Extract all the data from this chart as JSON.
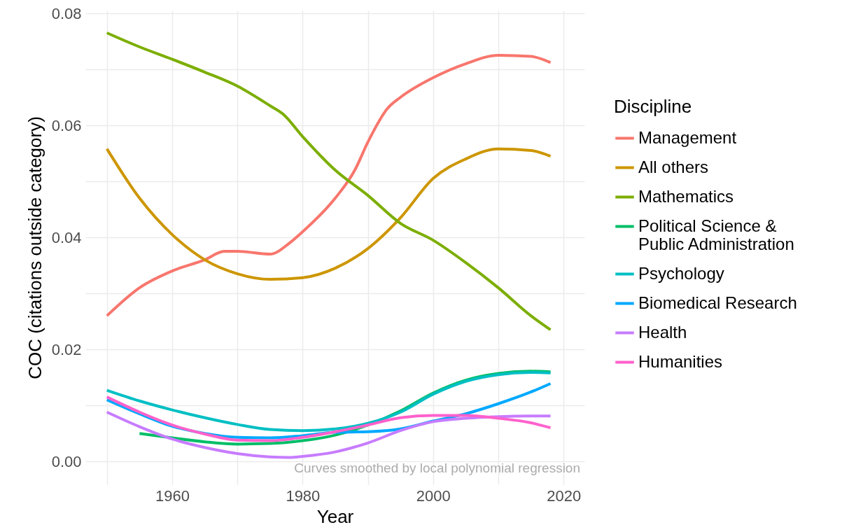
{
  "chart_data": {
    "type": "line",
    "xlabel": "Year",
    "ylabel": "COC (citations outside category)",
    "legend_title": "Discipline",
    "legend": "right",
    "grid": true,
    "xlim": [
      1946.7,
      2023.2
    ],
    "xticks": [
      {
        "value": 1950,
        "label": null
      },
      1960,
      {
        "value": 1970,
        "label": null
      },
      1980,
      {
        "value": 1990,
        "label": null
      },
      2000,
      {
        "value": 2010,
        "label": null
      },
      2020
    ],
    "ylim": [
      -0.0041,
      0.0805
    ],
    "yticks": [
      {
        "value": 0,
        "label": "0.00"
      },
      {
        "value": 0.01,
        "label": null
      },
      {
        "value": 0.02,
        "label": "0.02"
      },
      {
        "value": 0.03,
        "label": null
      },
      {
        "value": 0.04,
        "label": "0.04"
      },
      {
        "value": 0.05,
        "label": null
      },
      {
        "value": 0.06,
        "label": "0.06"
      },
      {
        "value": 0.07,
        "label": null
      },
      {
        "value": 0.08,
        "label": "0.08"
      }
    ],
    "annotations": [
      "Curves smoothed by local polynomial regression"
    ],
    "series": [
      {
        "name": "Management",
        "color": "#f8766d",
        "x": [
          1950,
          1955,
          1960,
          1965,
          1968,
          1970,
          1975,
          1978,
          1980,
          1985,
          1988,
          1990,
          1993,
          1995,
          2000,
          2005,
          2010,
          2015,
          2018
        ],
        "values": [
          0.026,
          0.031,
          0.034,
          0.036,
          0.0375,
          0.0375,
          0.037,
          0.039,
          0.041,
          0.047,
          0.052,
          0.057,
          0.063,
          0.065,
          0.0685,
          0.071,
          0.0725,
          0.0723,
          0.0712
        ]
      },
      {
        "name": "All others",
        "color": "#cd9600",
        "x": [
          1950,
          1955,
          1960,
          1965,
          1970,
          1975,
          1980,
          1985,
          1990,
          1995,
          2000,
          2005,
          2010,
          2015,
          2018
        ],
        "values": [
          0.0558,
          0.047,
          0.0405,
          0.036,
          0.0335,
          0.0325,
          0.0328,
          0.0345,
          0.038,
          0.0435,
          0.0505,
          0.054,
          0.0558,
          0.0555,
          0.0545
        ]
      },
      {
        "name": "Mathematics",
        "color": "#7cae00",
        "x": [
          1950,
          1955,
          1960,
          1965,
          1970,
          1975,
          1977,
          1980,
          1985,
          1990,
          1995,
          2000,
          2005,
          2010,
          2015,
          2018
        ],
        "values": [
          0.0765,
          0.074,
          0.0718,
          0.0695,
          0.067,
          0.0635,
          0.062,
          0.058,
          0.052,
          0.0475,
          0.0425,
          0.0395,
          0.0355,
          0.031,
          0.026,
          0.0235
        ]
      },
      {
        "name": "Political Science & Public Administration",
        "color": "#00be67",
        "x": [
          1955,
          1960,
          1965,
          1970,
          1975,
          1980,
          1985,
          1990,
          1995,
          2000,
          2005,
          2010,
          2015,
          2018
        ],
        "values": [
          0.005,
          0.0042,
          0.0035,
          0.0031,
          0.0032,
          0.0037,
          0.0047,
          0.0065,
          0.009,
          0.0122,
          0.0145,
          0.0157,
          0.0161,
          0.016
        ]
      },
      {
        "name": "Psychology",
        "color": "#00bfc4",
        "x": [
          1950,
          1955,
          1960,
          1965,
          1970,
          1975,
          1980,
          1985,
          1990,
          1995,
          2000,
          2005,
          2010,
          2015,
          2018
        ],
        "values": [
          0.0127,
          0.0108,
          0.0092,
          0.0078,
          0.0066,
          0.0057,
          0.0055,
          0.0058,
          0.0068,
          0.0088,
          0.012,
          0.0143,
          0.0155,
          0.0159,
          0.0158
        ]
      },
      {
        "name": "Biomedical Research",
        "color": "#00a9ff",
        "x": [
          1950,
          1955,
          1960,
          1965,
          1970,
          1975,
          1980,
          1985,
          1990,
          1995,
          2000,
          2005,
          2010,
          2015,
          2018
        ],
        "values": [
          0.011,
          0.0085,
          0.0063,
          0.005,
          0.0043,
          0.0042,
          0.0046,
          0.0052,
          0.0053,
          0.0058,
          0.0072,
          0.0085,
          0.0103,
          0.0124,
          0.0139
        ]
      },
      {
        "name": "Health",
        "color": "#c77cff",
        "x": [
          1950,
          1955,
          1960,
          1965,
          1970,
          1975,
          1978,
          1980,
          1985,
          1990,
          1995,
          2000,
          2005,
          2010,
          2015,
          2018
        ],
        "values": [
          0.0088,
          0.0062,
          0.004,
          0.0025,
          0.0014,
          0.0008,
          0.0007,
          0.0009,
          0.0017,
          0.0033,
          0.0055,
          0.0071,
          0.0077,
          0.008,
          0.0081,
          0.0081
        ]
      },
      {
        "name": "Humanities",
        "color": "#ff61cc",
        "x": [
          1950,
          1955,
          1960,
          1965,
          1970,
          1975,
          1980,
          1985,
          1990,
          1995,
          2000,
          2005,
          2010,
          2015,
          2018
        ],
        "values": [
          0.0115,
          0.0088,
          0.0065,
          0.0049,
          0.0038,
          0.0037,
          0.0043,
          0.0053,
          0.0065,
          0.0078,
          0.0082,
          0.0082,
          0.0077,
          0.0069,
          0.006
        ]
      }
    ]
  }
}
